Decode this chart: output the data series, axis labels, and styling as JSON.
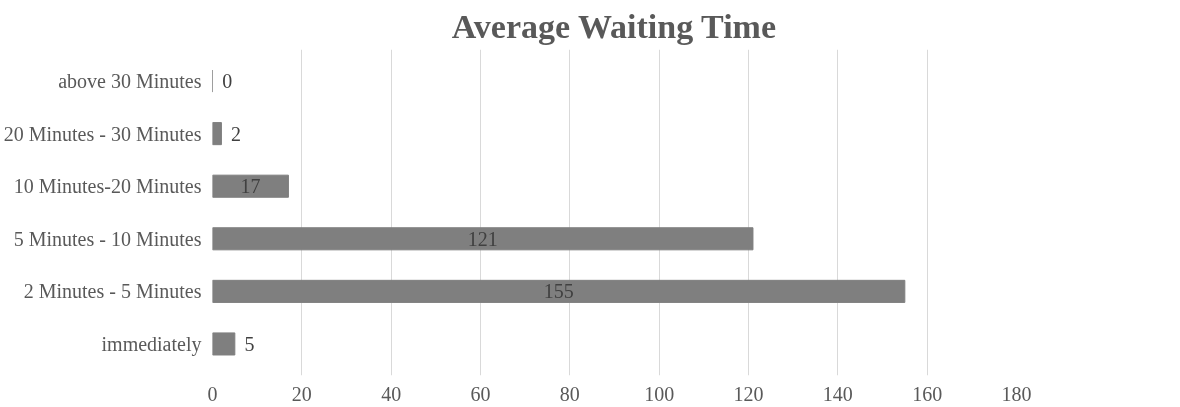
{
  "chart_data": {
    "type": "bar",
    "orientation": "horizontal",
    "title": "Average Waiting Time",
    "categories": [
      "above 30 Minutes",
      "20 Minutes - 30 Minutes",
      "10 Minutes-20 Minutes",
      "5 Minutes - 10 Minutes",
      "2 Minutes - 5 Minutes",
      "immediately"
    ],
    "values": [
      0,
      2,
      17,
      121,
      155,
      5
    ],
    "color": "#7f7f7f",
    "xlim": [
      0,
      180
    ],
    "xticks": [
      0,
      20,
      40,
      60,
      80,
      100,
      120,
      140,
      160,
      180
    ],
    "grid": "x",
    "data_labels": true
  }
}
